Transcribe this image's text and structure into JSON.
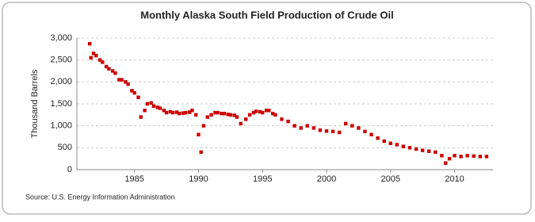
{
  "chart_data": {
    "type": "scatter",
    "title": "Monthly Alaska South Field Production of Crude Oil",
    "y_label": "Thousand Barrels",
    "source": "Source: U.S. Energy Information Administration",
    "grid": true,
    "xlim": [
      1980.5,
      2013
    ],
    "ylim": [
      0,
      3000
    ],
    "xticks": [
      1985,
      1990,
      1995,
      2000,
      2005,
      2010
    ],
    "yticks": [
      0,
      500,
      {
        "value": 1000,
        "label": "1,000"
      },
      {
        "value": 1500,
        "label": "1,500"
      },
      {
        "value": 2000,
        "label": "2,000"
      },
      {
        "value": 2500,
        "label": "2,500"
      },
      {
        "value": 3000,
        "label": "3,000"
      }
    ],
    "color": "#cc0000",
    "x": [
      1981.5,
      1981.6,
      1981.8,
      1982,
      1982.3,
      1982.5,
      1982.8,
      1983,
      1983.3,
      1983.5,
      1983.8,
      1984,
      1984.3,
      1984.5,
      1984.8,
      1985,
      1985.3,
      1985.5,
      1985.8,
      1986,
      1986.3,
      1986.5,
      1986.8,
      1987,
      1987.3,
      1987.5,
      1987.8,
      1988,
      1988.3,
      1988.5,
      1988.8,
      1989,
      1989.3,
      1989.5,
      1989.8,
      1990,
      1990.2,
      1990.4,
      1990.7,
      1991,
      1991.3,
      1991.5,
      1991.8,
      1992,
      1992.3,
      1992.5,
      1992.8,
      1993,
      1993.3,
      1993.7,
      1994,
      1994.3,
      1994.5,
      1994.8,
      1995,
      1995.3,
      1995.5,
      1995.8,
      1996,
      1996.5,
      1997,
      1997.5,
      1998,
      1998.5,
      1999,
      1999.5,
      2000,
      2000.5,
      2001,
      2001.5,
      2002,
      2002.5,
      2003,
      2003.5,
      2004,
      2004.5,
      2005,
      2005.5,
      2006,
      2006.5,
      2007,
      2007.5,
      2008,
      2008.5,
      2009,
      2009.3,
      2009.6,
      2010,
      2010.5,
      2011,
      2011.5,
      2012,
      2012.5
    ],
    "values": [
      2870,
      2550,
      2650,
      2600,
      2500,
      2450,
      2350,
      2300,
      2250,
      2200,
      2050,
      2050,
      2000,
      1950,
      1800,
      1750,
      1650,
      1200,
      1350,
      1500,
      1520,
      1450,
      1420,
      1400,
      1350,
      1300,
      1320,
      1300,
      1310,
      1280,
      1290,
      1300,
      1310,
      1350,
      1250,
      800,
      400,
      1000,
      1200,
      1250,
      1300,
      1300,
      1280,
      1280,
      1260,
      1250,
      1240,
      1200,
      1050,
      1150,
      1250,
      1300,
      1330,
      1320,
      1300,
      1350,
      1350,
      1280,
      1250,
      1150,
      1100,
      1000,
      950,
      1000,
      950,
      900,
      880,
      870,
      850,
      1050,
      1000,
      950,
      870,
      800,
      720,
      650,
      600,
      570,
      530,
      500,
      470,
      440,
      420,
      400,
      320,
      150,
      250,
      320,
      300,
      320,
      310,
      300,
      300
    ]
  }
}
